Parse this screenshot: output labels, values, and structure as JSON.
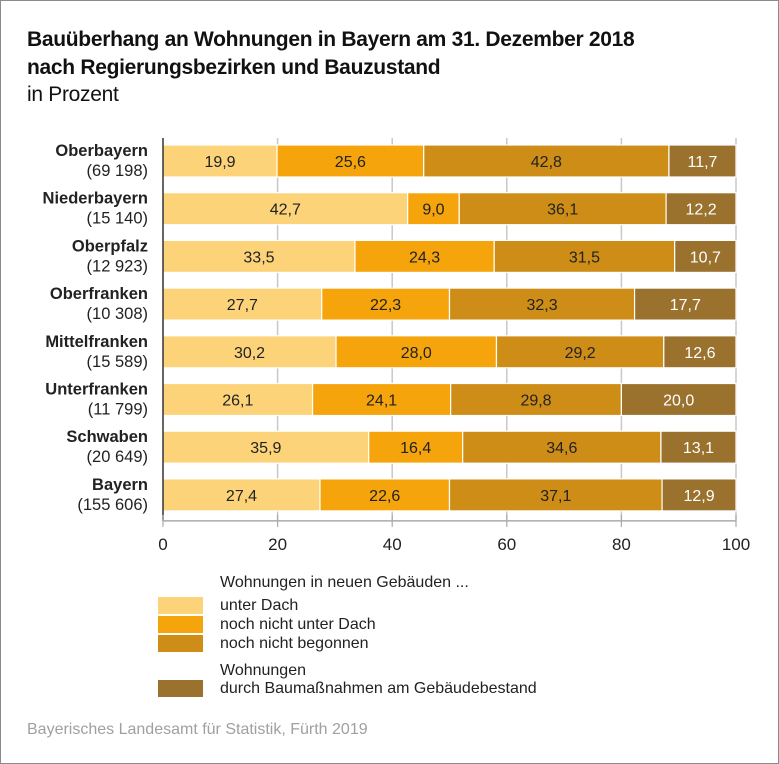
{
  "header": {
    "title_line1": "Bauüberhang an Wohnungen in Bayern am 31. Dezember 2018",
    "title_line2": "nach Regierungsbezirken und Bauzustand",
    "subtitle": "in Prozent"
  },
  "chart_data": {
    "type": "bar",
    "orientation": "horizontal",
    "stacked": true,
    "title": "Bauüberhang an Wohnungen in Bayern am 31. Dezember 2018 nach Regierungsbezirken und Bauzustand",
    "subtitle": "in Prozent",
    "xlabel": "",
    "ylabel": "",
    "xlim": [
      0,
      100
    ],
    "xticks": [
      0,
      20,
      40,
      60,
      80,
      100
    ],
    "xtick_labels": [
      "0",
      "20",
      "40",
      "60",
      "80",
      "100"
    ],
    "grid": true,
    "categories": [
      "Oberbayern",
      "Niederbayern",
      "Oberpfalz",
      "Oberfranken",
      "Mittelfranken",
      "Unterfranken",
      "Schwaben",
      "Bayern"
    ],
    "category_counts": [
      "(69 198)",
      "(15 140)",
      "(12 923)",
      "(10 308)",
      "(15 589)",
      "(11 799)",
      "(20 649)",
      "(155 606)"
    ],
    "series": [
      {
        "name": "unter Dach",
        "color": "#fcd378",
        "label_color": "#222222",
        "values": [
          19.9,
          42.7,
          33.5,
          27.7,
          30.2,
          26.1,
          35.9,
          27.4
        ],
        "labels": [
          "19,9",
          "42,7",
          "33,5",
          "27,7",
          "30,2",
          "26,1",
          "35,9",
          "27,4"
        ]
      },
      {
        "name": "noch nicht unter Dach",
        "color": "#f5a40c",
        "label_color": "#222222",
        "values": [
          25.6,
          9.0,
          24.3,
          22.3,
          28.0,
          24.1,
          16.4,
          22.6
        ],
        "labels": [
          "25,6",
          "9,0",
          "24,3",
          "22,3",
          "28,0",
          "24,1",
          "16,4",
          "22,6"
        ]
      },
      {
        "name": "noch nicht begonnen",
        "color": "#cd8d17",
        "label_color": "#222222",
        "values": [
          42.8,
          36.1,
          31.5,
          32.3,
          29.2,
          29.8,
          34.6,
          37.1
        ],
        "labels": [
          "42,8",
          "36,1",
          "31,5",
          "32,3",
          "29,2",
          "29,8",
          "34,6",
          "37,1"
        ]
      },
      {
        "name": "durch Baumaßnahmen am Gebäudebestand",
        "color": "#9a722e",
        "label_color": "#ffffff",
        "values": [
          11.7,
          12.2,
          10.7,
          17.7,
          12.6,
          20.0,
          13.1,
          12.9
        ],
        "labels": [
          "11,7",
          "12,2",
          "10,7",
          "17,7",
          "12,6",
          "20,0",
          "13,1",
          "12,9"
        ]
      }
    ],
    "legend": {
      "placement": "bottom",
      "group1_header": "Wohnungen in neuen Gebäuden ...",
      "group2_header": "Wohnungen",
      "entries": [
        "unter Dach",
        "noch nicht unter Dach",
        "noch nicht begonnen",
        "durch Baumaßnahmen am Gebäudebestand"
      ]
    }
  },
  "footer": {
    "source": "Bayerisches Landesamt für Statistik, Fürth 2019"
  },
  "colors": {
    "gridline": "#c8c8c8",
    "axis": "#333333",
    "separator": "#ffffff"
  }
}
